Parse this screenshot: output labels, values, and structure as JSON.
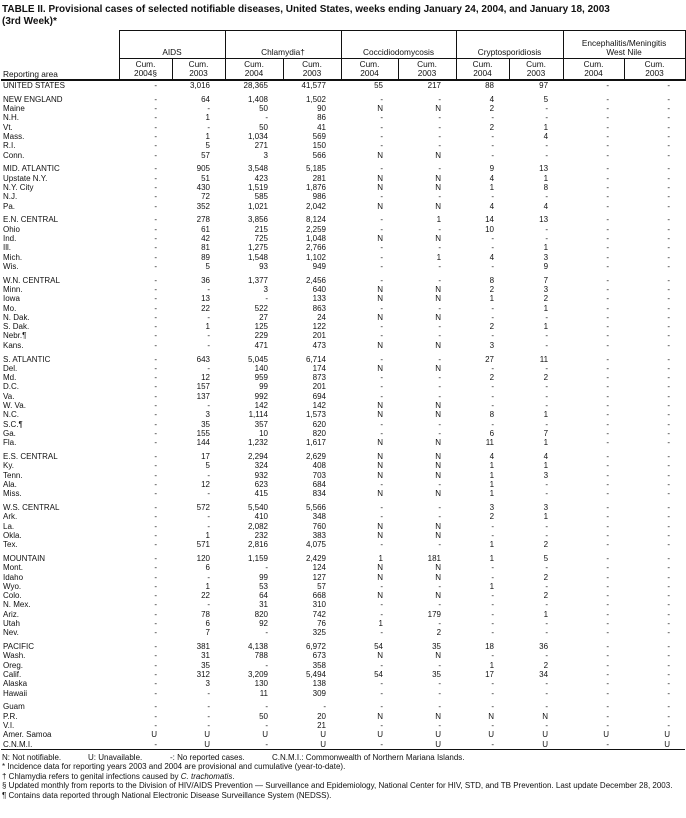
{
  "title": {
    "line1": "TABLE II. Provisional cases of selected notifiable diseases, United States, weeks ending January 24, 2004, and January 18, 2003",
    "line2": "(3rd Week)*"
  },
  "table": {
    "reporting_area_label": "Reporting area",
    "groups": [
      {
        "name": "AIDS",
        "cols": [
          "Cum.\n2004§",
          "Cum.\n2003"
        ]
      },
      {
        "name": "Chlamydia†",
        "cols": [
          "Cum.\n2004",
          "Cum.\n2003"
        ]
      },
      {
        "name": "Coccidiodomycosis",
        "cols": [
          "Cum.\n2004",
          "Cum.\n2003"
        ]
      },
      {
        "name": "Cryptosporidiosis",
        "cols": [
          "Cum.\n2004",
          "Cum.\n2003"
        ]
      },
      {
        "name": "Encephalitis/Meningitis\nWest Nile",
        "cols": [
          "Cum.\n2004",
          "Cum.\n2003"
        ]
      }
    ],
    "sections": [
      {
        "rows": [
          [
            "UNITED STATES",
            "-",
            "3,016",
            "28,365",
            "41,577",
            "55",
            "217",
            "88",
            "97",
            "-",
            "-"
          ]
        ]
      },
      {
        "rows": [
          [
            "NEW ENGLAND",
            "-",
            "64",
            "1,408",
            "1,502",
            "-",
            "-",
            "4",
            "5",
            "-",
            "-"
          ],
          [
            "Maine",
            "-",
            "-",
            "50",
            "90",
            "N",
            "N",
            "2",
            "-",
            "-",
            "-"
          ],
          [
            "N.H.",
            "-",
            "1",
            "-",
            "86",
            "-",
            "-",
            "-",
            "-",
            "-",
            "-"
          ],
          [
            "Vt.",
            "-",
            "-",
            "50",
            "41",
            "-",
            "-",
            "2",
            "1",
            "-",
            "-"
          ],
          [
            "Mass.",
            "-",
            "1",
            "1,034",
            "569",
            "-",
            "-",
            "-",
            "4",
            "-",
            "-"
          ],
          [
            "R.I.",
            "-",
            "5",
            "271",
            "150",
            "-",
            "-",
            "-",
            "-",
            "-",
            "-"
          ],
          [
            "Conn.",
            "-",
            "57",
            "3",
            "566",
            "N",
            "N",
            "-",
            "-",
            "-",
            "-"
          ]
        ]
      },
      {
        "rows": [
          [
            "MID. ATLANTIC",
            "-",
            "905",
            "3,548",
            "5,185",
            "-",
            "-",
            "9",
            "13",
            "-",
            "-"
          ],
          [
            "Upstate N.Y.",
            "-",
            "51",
            "423",
            "281",
            "N",
            "N",
            "4",
            "1",
            "-",
            "-"
          ],
          [
            "N.Y. City",
            "-",
            "430",
            "1,519",
            "1,876",
            "N",
            "N",
            "1",
            "8",
            "-",
            "-"
          ],
          [
            "N.J.",
            "-",
            "72",
            "585",
            "986",
            "-",
            "-",
            "-",
            "-",
            "-",
            "-"
          ],
          [
            "Pa.",
            "-",
            "352",
            "1,021",
            "2,042",
            "N",
            "N",
            "4",
            "4",
            "-",
            "-"
          ]
        ]
      },
      {
        "rows": [
          [
            "E.N. CENTRAL",
            "-",
            "278",
            "3,856",
            "8,124",
            "-",
            "1",
            "14",
            "13",
            "-",
            "-"
          ],
          [
            "Ohio",
            "-",
            "61",
            "215",
            "2,259",
            "-",
            "-",
            "10",
            "-",
            "-",
            "-"
          ],
          [
            "Ind.",
            "-",
            "42",
            "725",
            "1,048",
            "N",
            "N",
            "-",
            "-",
            "-",
            "-"
          ],
          [
            "Ill.",
            "-",
            "81",
            "1,275",
            "2,766",
            "-",
            "-",
            "-",
            "1",
            "-",
            "-"
          ],
          [
            "Mich.",
            "-",
            "89",
            "1,548",
            "1,102",
            "-",
            "1",
            "4",
            "3",
            "-",
            "-"
          ],
          [
            "Wis.",
            "-",
            "5",
            "93",
            "949",
            "-",
            "-",
            "-",
            "9",
            "-",
            "-"
          ]
        ]
      },
      {
        "rows": [
          [
            "W.N. CENTRAL",
            "-",
            "36",
            "1,377",
            "2,456",
            "-",
            "-",
            "8",
            "7",
            "-",
            "-"
          ],
          [
            "Minn.",
            "-",
            "-",
            "3",
            "640",
            "N",
            "N",
            "2",
            "3",
            "-",
            "-"
          ],
          [
            "Iowa",
            "-",
            "13",
            "-",
            "133",
            "N",
            "N",
            "1",
            "2",
            "-",
            "-"
          ],
          [
            "Mo.",
            "-",
            "22",
            "522",
            "863",
            "-",
            "-",
            "-",
            "1",
            "-",
            "-"
          ],
          [
            "N. Dak.",
            "-",
            "-",
            "27",
            "24",
            "N",
            "N",
            "-",
            "-",
            "-",
            "-"
          ],
          [
            "S. Dak.",
            "-",
            "1",
            "125",
            "122",
            "-",
            "-",
            "2",
            "1",
            "-",
            "-"
          ],
          [
            "Nebr.¶",
            "-",
            "-",
            "229",
            "201",
            "-",
            "-",
            "-",
            "-",
            "-",
            "-"
          ],
          [
            "Kans.",
            "-",
            "-",
            "471",
            "473",
            "N",
            "N",
            "3",
            "-",
            "-",
            "-"
          ]
        ]
      },
      {
        "rows": [
          [
            "S. ATLANTIC",
            "-",
            "643",
            "5,045",
            "6,714",
            "-",
            "-",
            "27",
            "11",
            "-",
            "-"
          ],
          [
            "Del.",
            "-",
            "-",
            "140",
            "174",
            "N",
            "N",
            "-",
            "-",
            "-",
            "-"
          ],
          [
            "Md.",
            "-",
            "12",
            "959",
            "873",
            "-",
            "-",
            "2",
            "2",
            "-",
            "-"
          ],
          [
            "D.C.",
            "-",
            "157",
            "99",
            "201",
            "-",
            "-",
            "-",
            "-",
            "-",
            "-"
          ],
          [
            "Va.",
            "-",
            "137",
            "992",
            "694",
            "-",
            "-",
            "-",
            "-",
            "-",
            "-"
          ],
          [
            "W. Va.",
            "-",
            "-",
            "142",
            "142",
            "N",
            "N",
            "-",
            "-",
            "-",
            "-"
          ],
          [
            "N.C.",
            "-",
            "3",
            "1,114",
            "1,573",
            "N",
            "N",
            "8",
            "1",
            "-",
            "-"
          ],
          [
            "S.C.¶",
            "-",
            "35",
            "357",
            "620",
            "-",
            "-",
            "-",
            "-",
            "-",
            "-"
          ],
          [
            "Ga.",
            "-",
            "155",
            "10",
            "820",
            "-",
            "-",
            "6",
            "7",
            "-",
            "-"
          ],
          [
            "Fla.",
            "-",
            "144",
            "1,232",
            "1,617",
            "N",
            "N",
            "11",
            "1",
            "-",
            "-"
          ]
        ]
      },
      {
        "rows": [
          [
            "E.S. CENTRAL",
            "-",
            "17",
            "2,294",
            "2,629",
            "N",
            "N",
            "4",
            "4",
            "-",
            "-"
          ],
          [
            "Ky.",
            "-",
            "5",
            "324",
            "408",
            "N",
            "N",
            "1",
            "1",
            "-",
            "-"
          ],
          [
            "Tenn.",
            "-",
            "-",
            "932",
            "703",
            "N",
            "N",
            "1",
            "3",
            "-",
            "-"
          ],
          [
            "Ala.",
            "-",
            "12",
            "623",
            "684",
            "-",
            "-",
            "1",
            "-",
            "-",
            "-"
          ],
          [
            "Miss.",
            "-",
            "-",
            "415",
            "834",
            "N",
            "N",
            "1",
            "-",
            "-",
            "-"
          ]
        ]
      },
      {
        "rows": [
          [
            "W.S. CENTRAL",
            "-",
            "572",
            "5,540",
            "5,566",
            "-",
            "-",
            "3",
            "3",
            "-",
            "-"
          ],
          [
            "Ark.",
            "-",
            "-",
            "410",
            "348",
            "-",
            "-",
            "2",
            "1",
            "-",
            "-"
          ],
          [
            "La.",
            "-",
            "-",
            "2,082",
            "760",
            "N",
            "N",
            "-",
            "-",
            "-",
            "-"
          ],
          [
            "Okla.",
            "-",
            "1",
            "232",
            "383",
            "N",
            "N",
            "-",
            "-",
            "-",
            "-"
          ],
          [
            "Tex.",
            "-",
            "571",
            "2,816",
            "4,075",
            "-",
            "-",
            "1",
            "2",
            "-",
            "-"
          ]
        ]
      },
      {
        "rows": [
          [
            "MOUNTAIN",
            "-",
            "120",
            "1,159",
            "2,429",
            "1",
            "181",
            "1",
            "5",
            "-",
            "-"
          ],
          [
            "Mont.",
            "-",
            "6",
            "-",
            "124",
            "N",
            "N",
            "-",
            "-",
            "-",
            "-"
          ],
          [
            "Idaho",
            "-",
            "-",
            "99",
            "127",
            "N",
            "N",
            "-",
            "2",
            "-",
            "-"
          ],
          [
            "Wyo.",
            "-",
            "1",
            "53",
            "57",
            "-",
            "-",
            "1",
            "-",
            "-",
            "-"
          ],
          [
            "Colo.",
            "-",
            "22",
            "64",
            "668",
            "N",
            "N",
            "-",
            "2",
            "-",
            "-"
          ],
          [
            "N. Mex.",
            "-",
            "-",
            "31",
            "310",
            "-",
            "-",
            "-",
            "-",
            "-",
            "-"
          ],
          [
            "Ariz.",
            "-",
            "78",
            "820",
            "742",
            "-",
            "179",
            "-",
            "1",
            "-",
            "-"
          ],
          [
            "Utah",
            "-",
            "6",
            "92",
            "76",
            "1",
            "-",
            "-",
            "-",
            "-",
            "-"
          ],
          [
            "Nev.",
            "-",
            "7",
            "-",
            "325",
            "-",
            "2",
            "-",
            "-",
            "-",
            "-"
          ]
        ]
      },
      {
        "rows": [
          [
            "PACIFIC",
            "-",
            "381",
            "4,138",
            "6,972",
            "54",
            "35",
            "18",
            "36",
            "-",
            "-"
          ],
          [
            "Wash.",
            "-",
            "31",
            "788",
            "673",
            "N",
            "N",
            "-",
            "-",
            "-",
            "-"
          ],
          [
            "Oreg.",
            "-",
            "35",
            "-",
            "358",
            "-",
            "-",
            "1",
            "2",
            "-",
            "-"
          ],
          [
            "Calif.",
            "-",
            "312",
            "3,209",
            "5,494",
            "54",
            "35",
            "17",
            "34",
            "-",
            "-"
          ],
          [
            "Alaska",
            "-",
            "3",
            "130",
            "138",
            "-",
            "-",
            "-",
            "-",
            "-",
            "-"
          ],
          [
            "Hawaii",
            "-",
            "-",
            "11",
            "309",
            "-",
            "-",
            "-",
            "-",
            "-",
            "-"
          ]
        ]
      },
      {
        "rows": [
          [
            "Guam",
            "-",
            "-",
            "-",
            "-",
            "-",
            "-",
            "-",
            "-",
            "-",
            "-"
          ],
          [
            "P.R.",
            "-",
            "-",
            "50",
            "20",
            "N",
            "N",
            "N",
            "N",
            "-",
            "-"
          ],
          [
            "V.I.",
            "-",
            "-",
            "-",
            "21",
            "-",
            "-",
            "-",
            "-",
            "-",
            "-"
          ],
          [
            "Amer. Samoa",
            "U",
            "U",
            "U",
            "U",
            "U",
            "U",
            "U",
            "U",
            "U",
            "U"
          ],
          [
            "C.N.M.I.",
            "-",
            "U",
            "-",
            "U",
            "-",
            "U",
            "-",
            "U",
            "-",
            "U"
          ]
        ]
      }
    ]
  },
  "footnotes": {
    "legend": [
      "N: Not notifiable.",
      "U: Unavailable.",
      "-: No reported cases.",
      "C.N.M.I.: Commonwealth of Northern Mariana Islands."
    ],
    "notes": [
      {
        "text": "* Incidence data for reporting years 2003 and 2004 are provisional and cumulative (year-to-date)."
      },
      {
        "pre": "† Chlamydia refers to genital infections caused by ",
        "italic": "C. trachomatis",
        "post": "."
      },
      {
        "text": "§ Updated monthly from reports to the Division of HIV/AIDS Prevention — Surveillance and Epidemiology, National Center for HIV, STD, and TB Prevention. Last update December 28, 2003.",
        "justify": true
      },
      {
        "text": "¶ Contains data reported through National Electronic Disease Surveillance System (NEDSS)."
      }
    ]
  }
}
